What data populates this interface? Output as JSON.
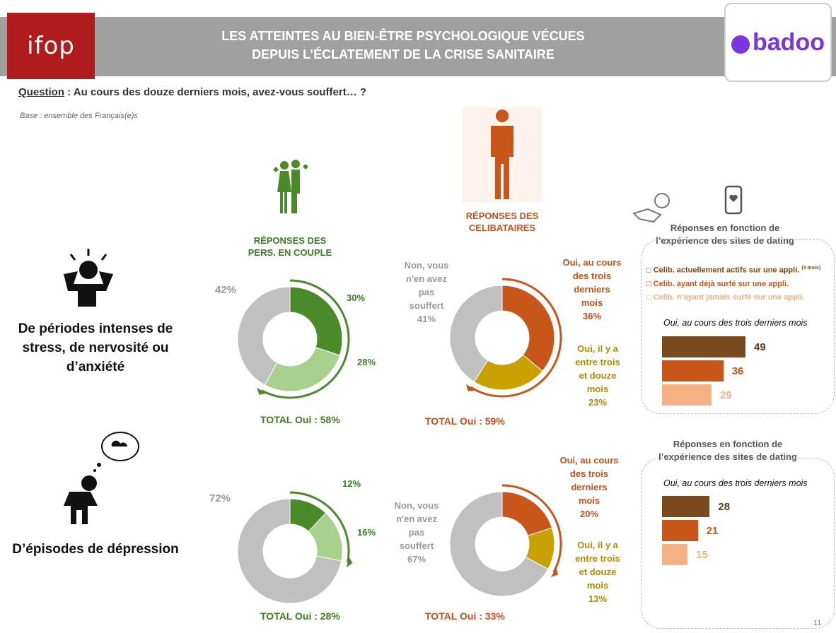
{
  "header": {
    "logo_left": "ifop",
    "title_line1": "LES ATTEINTES AU BIEN-ÊTRE PSYCHOLOGIQUE VÉCUES",
    "title_line2": "DEPUIS L’ÉCLATEMENT DE LA CRISE SANITAIRE",
    "logo_right": "badoo"
  },
  "question": {
    "prefix": "Question",
    "text": " : Au cours des douze derniers mois, avez-vous souffert… ?"
  },
  "base": "Base : ensemble des Français(e)s",
  "groups": {
    "couple_line1": "RÉPONSES DES",
    "couple_line2": "PERS. EN COUPLE",
    "single_line1": "RÉPONSES DES",
    "single_line2": "CELIBATAIRES"
  },
  "rows": {
    "stress": {
      "label_line1": "De périodes intenses de",
      "label_line2": "stress, de nervosité ou",
      "label_line3": "d’anxiété"
    },
    "depression": {
      "label": "D’épisodes de dépression"
    }
  },
  "annotations": {
    "non_l1": "Non, vous",
    "non_l2": "n'en avez",
    "non_l3": "pas",
    "non_l4": "souffert",
    "oui3_l1": "Oui, au cours",
    "oui3_l2": "des trois",
    "oui3_l3": "derniers",
    "oui3_l4": "mois",
    "oui12_l1": "Oui, il y a",
    "oui12_l2": "entre trois",
    "oui12_l3": "et douze",
    "oui12_l4": "mois"
  },
  "panel": {
    "title_line1": "Réponses en fonction de",
    "title_line2": "l’expérience des sites de dating",
    "subtitle": "Oui, au cours des trois derniers mois",
    "legend": [
      {
        "label": "Celib. actuellement actifs sur une appli.",
        "sup": "(3 mois)",
        "color": "#7a4a1e"
      },
      {
        "label": "Celib. ayant déjà surfé sur une appli.",
        "color": "#c8561a"
      },
      {
        "label": "Celib. n’ayant jamais surfé sur une appli.",
        "color": "#f4b183"
      }
    ]
  },
  "chart_data": [
    {
      "type": "pie",
      "title": "",
      "group": "RÉPONSES DES PERS. EN COUPLE",
      "row": "De périodes intenses de stress, de nervosité ou d’anxiété",
      "categories": [
        "30%",
        "28%",
        "42%"
      ],
      "values": [
        30,
        28,
        42
      ],
      "colors": [
        "#4a8a2a",
        "#a9d18e",
        "#c0c0c0"
      ],
      "value_labels": [
        "30%",
        "28%",
        "42%"
      ],
      "total": "TOTAL Oui : 58%"
    },
    {
      "type": "pie",
      "title": "",
      "group": "RÉPONSES DES CELIBATAIRES",
      "row": "De périodes intenses de stress, de nervosité ou d’anxiété",
      "categories": [
        "Oui, au cours des trois derniers mois",
        "Oui, il y a entre trois et douze mois",
        "Non, vous n'en avez pas souffert"
      ],
      "values": [
        36,
        23,
        41
      ],
      "colors": [
        "#c8561a",
        "#c9a100",
        "#c0c0c0"
      ],
      "value_labels": [
        "36%",
        "23%",
        "41%"
      ],
      "total": "TOTAL Oui : 59%"
    },
    {
      "type": "pie",
      "title": "",
      "group": "RÉPONSES DES PERS. EN COUPLE",
      "row": "D’épisodes de dépression",
      "categories": [
        "12%",
        "16%",
        "72%"
      ],
      "values": [
        12,
        16,
        72
      ],
      "colors": [
        "#4a8a2a",
        "#a9d18e",
        "#c0c0c0"
      ],
      "value_labels": [
        "12%",
        "16%",
        "72%"
      ],
      "total": "TOTAL Oui : 28%"
    },
    {
      "type": "pie",
      "title": "",
      "group": "RÉPONSES DES CELIBATAIRES",
      "row": "D’épisodes de dépression",
      "categories": [
        "Oui, au cours des trois derniers mois",
        "Oui, il y a entre trois et douze mois",
        "Non, vous n'en avez pas souffert"
      ],
      "values": [
        20,
        13,
        67
      ],
      "colors": [
        "#c8561a",
        "#c9a100",
        "#c0c0c0"
      ],
      "value_labels": [
        "20%",
        "13%",
        "67%"
      ],
      "total": "TOTAL Oui : 33%"
    },
    {
      "type": "bar",
      "orientation": "horizontal",
      "title": "Oui, au cours des trois derniers mois",
      "row": "De périodes intenses de stress, de nervosité ou d’anxiété",
      "categories": [
        "Celib. actuellement actifs sur une appli.",
        "Celib. ayant déjà surfé sur une appli.",
        "Celib. n’ayant jamais surfé sur une appli."
      ],
      "values": [
        49,
        36,
        29
      ],
      "colors": [
        "#7a4a1e",
        "#c8561a",
        "#f4b183"
      ],
      "xlim": [
        0,
        49
      ]
    },
    {
      "type": "bar",
      "orientation": "horizontal",
      "title": "Oui, au cours des trois derniers mois",
      "row": "D’épisodes de dépression",
      "categories": [
        "Celib. actuellement actifs sur une appli.",
        "Celib. ayant déjà surfé sur une appli.",
        "Celib. n’ayant jamais surfé sur une appli."
      ],
      "values": [
        28,
        21,
        15
      ],
      "colors": [
        "#7a4a1e",
        "#c8561a",
        "#f4b183"
      ],
      "xlim": [
        0,
        49
      ]
    }
  ],
  "page_number": "11"
}
